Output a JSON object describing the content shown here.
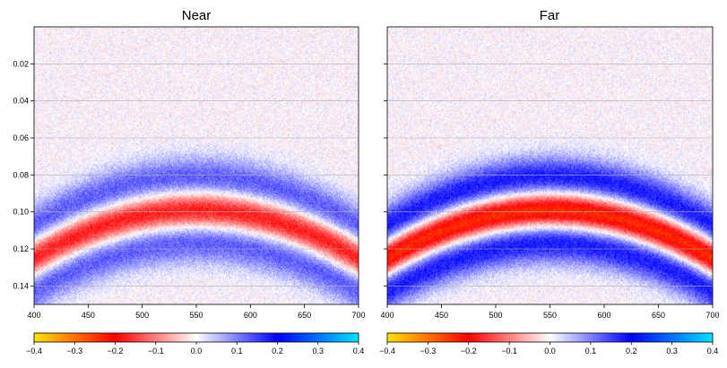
{
  "chart_data": [
    {
      "type": "heatmap",
      "title": "Near",
      "x_range": [
        400,
        700
      ],
      "y_range": [
        0.0,
        0.15
      ],
      "y_inverted": true,
      "x_ticks": [
        "400",
        "450",
        "500",
        "550",
        "600",
        "650",
        "700"
      ],
      "y_ticks": [
        "0.02",
        "0.04",
        "0.06",
        "0.08",
        "0.10",
        "0.12",
        "0.14"
      ],
      "grid": "horizontal",
      "event": {
        "apex_x": 550,
        "apex_y": 0.099,
        "edge_y": 0.125,
        "peak_amplitude": -0.22,
        "side_lobe_amplitude": 0.14,
        "noise_amplitude": 0.04
      },
      "colorbar": {
        "range": [
          -0.4,
          0.4
        ],
        "ticks": [
          "−0.4",
          "−0.3",
          "−0.2",
          "−0.1",
          "0.0",
          "0.1",
          "0.2",
          "0.3",
          "0.4"
        ],
        "placement": "bottom"
      }
    },
    {
      "type": "heatmap",
      "title": "Far",
      "x_range": [
        400,
        700
      ],
      "y_range": [
        0.0,
        0.15
      ],
      "y_inverted": true,
      "x_ticks": [
        "400",
        "450",
        "500",
        "550",
        "600",
        "650",
        "700"
      ],
      "y_ticks": [
        "0.02",
        "0.04",
        "0.06",
        "0.08",
        "0.10",
        "0.12",
        "0.14"
      ],
      "grid": "horizontal",
      "event": {
        "apex_x": 550,
        "apex_y": 0.099,
        "edge_y": 0.125,
        "peak_amplitude": -0.3,
        "side_lobe_amplitude": 0.2,
        "noise_amplitude": 0.04
      },
      "colorbar": {
        "range": [
          -0.4,
          0.4
        ],
        "ticks": [
          "−0.4",
          "−0.3",
          "−0.2",
          "−0.1",
          "0.0",
          "0.1",
          "0.2",
          "0.3",
          "0.4"
        ],
        "placement": "bottom"
      }
    }
  ],
  "colormap": {
    "stops": [
      [
        -0.4,
        "#ffe400"
      ],
      [
        -0.2,
        "#ff0000"
      ],
      [
        0.0,
        "#ffffff"
      ],
      [
        0.2,
        "#0000ff"
      ],
      [
        0.4,
        "#00e5ff"
      ]
    ]
  },
  "colors": {
    "grid": "#b0b0b0",
    "axis": "#000000"
  }
}
